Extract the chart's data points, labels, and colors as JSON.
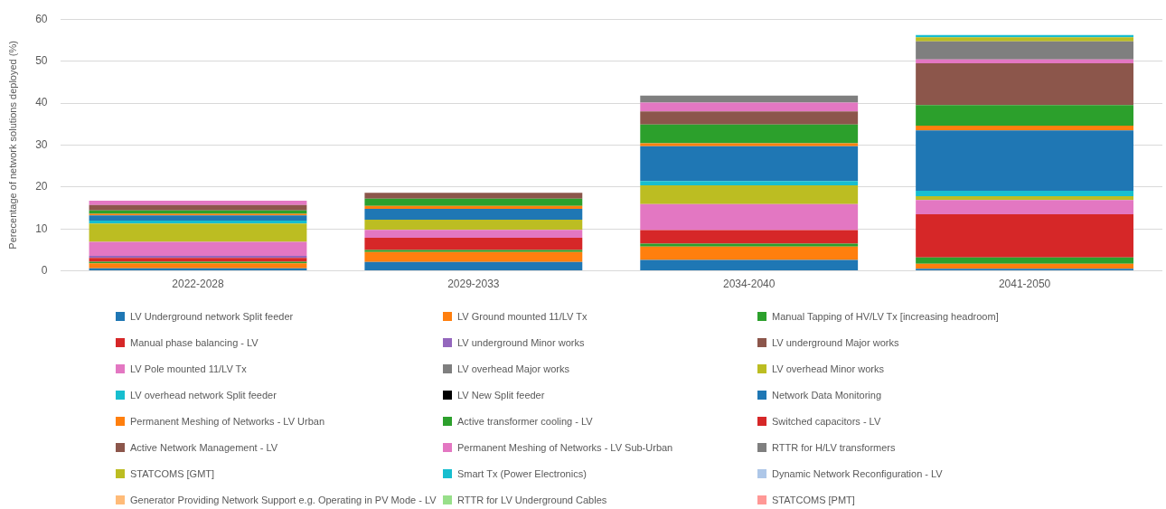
{
  "chart_data": {
    "type": "bar",
    "stacked": true,
    "ylabel": "Perecentage of network solutions deployed (%)",
    "categories": [
      "2022-2028",
      "2029-2033",
      "2034-2040",
      "2041-2050"
    ],
    "ylim": [
      0,
      60
    ],
    "yticks": [
      0,
      10,
      20,
      30,
      40,
      50,
      60
    ],
    "grid": "y",
    "legend": "bottom",
    "series": [
      {
        "name": "LV Underground network Split feeder",
        "color": "#1f77b4",
        "values": [
          0.6,
          2.1,
          2.6,
          0.5
        ]
      },
      {
        "name": "LV Ground mounted 11/LV Tx",
        "color": "#ff7f0e",
        "values": [
          1.2,
          2.4,
          3.2,
          1.2
        ]
      },
      {
        "name": "Manual Tapping of HV/LV Tx [increasing headroom]",
        "color": "#2ca02c",
        "values": [
          0.4,
          0.5,
          0.7,
          1.5
        ]
      },
      {
        "name": "Manual phase balancing - LV",
        "color": "#d62728",
        "values": [
          0.9,
          2.9,
          3.2,
          10.3
        ]
      },
      {
        "name": "LV underground  Minor works",
        "color": "#9467bd",
        "values": [
          0.5,
          0,
          0,
          0
        ]
      },
      {
        "name": "LV underground  Major works",
        "color": "#8c564b",
        "values": [
          0,
          0,
          0,
          0
        ]
      },
      {
        "name": "LV Pole mounted 11/LV Tx",
        "color": "#e377c2",
        "values": [
          3.3,
          1.9,
          6.2,
          3.4
        ]
      },
      {
        "name": "LV overhead Major works",
        "color": "#7f7f7f",
        "values": [
          0,
          0,
          0,
          0
        ]
      },
      {
        "name": "LV overhead Minor works",
        "color": "#bcbd22",
        "values": [
          4.4,
          2.4,
          4.5,
          0.9
        ]
      },
      {
        "name": "LV overhead network Split feeder",
        "color": "#17becf",
        "values": [
          0.7,
          0,
          1.0,
          1.3
        ]
      },
      {
        "name": "LV New Split feeder",
        "color": "#000000",
        "values": [
          0,
          0,
          0,
          0
        ]
      },
      {
        "name": "Network Data Monitoring",
        "color": "#1f77b4",
        "values": [
          1.2,
          2.6,
          8.3,
          14.4
        ]
      },
      {
        "name": "Permanent Meshing of Networks - LV Urban",
        "color": "#ff7f0e",
        "values": [
          0.4,
          0.7,
          0.7,
          1.1
        ]
      },
      {
        "name": "Active transformer cooling - LV",
        "color": "#2ca02c",
        "values": [
          0.8,
          1.7,
          4.5,
          4.9
        ]
      },
      {
        "name": "Switched capacitors - LV",
        "color": "#d62728",
        "values": [
          0,
          0,
          0,
          0
        ]
      },
      {
        "name": "Active Network Management - LV",
        "color": "#8c564b",
        "values": [
          1.3,
          1.4,
          3.1,
          10.0
        ]
      },
      {
        "name": "Permanent Meshing of Networks - LV Sub-Urban",
        "color": "#e377c2",
        "values": [
          1.0,
          0,
          2.1,
          0.9
        ]
      },
      {
        "name": "RTTR for H/LV transformers",
        "color": "#7f7f7f",
        "values": [
          0,
          0,
          1.7,
          4.3
        ]
      },
      {
        "name": "STATCOMS [GMT]",
        "color": "#bcbd22",
        "values": [
          0,
          0,
          0,
          1.0
        ]
      },
      {
        "name": "Smart Tx (Power Electronics)",
        "color": "#17becf",
        "values": [
          0,
          0,
          0,
          0.5
        ]
      },
      {
        "name": "Dynamic Network Reconfiguration  - LV",
        "color": "#aec7e8",
        "values": [
          0,
          0,
          0,
          0
        ]
      },
      {
        "name": "Generator Providing Network Support e.g. Operating in PV Mode - LV",
        "color": "#ffbb78",
        "values": [
          0,
          0,
          0,
          0
        ]
      },
      {
        "name": "RTTR for LV Underground  Cables",
        "color": "#98df8a",
        "values": [
          0,
          0,
          0,
          0
        ]
      },
      {
        "name": "STATCOMS [PMT]",
        "color": "#ff9896",
        "values": [
          0,
          0,
          0,
          0
        ]
      }
    ]
  }
}
